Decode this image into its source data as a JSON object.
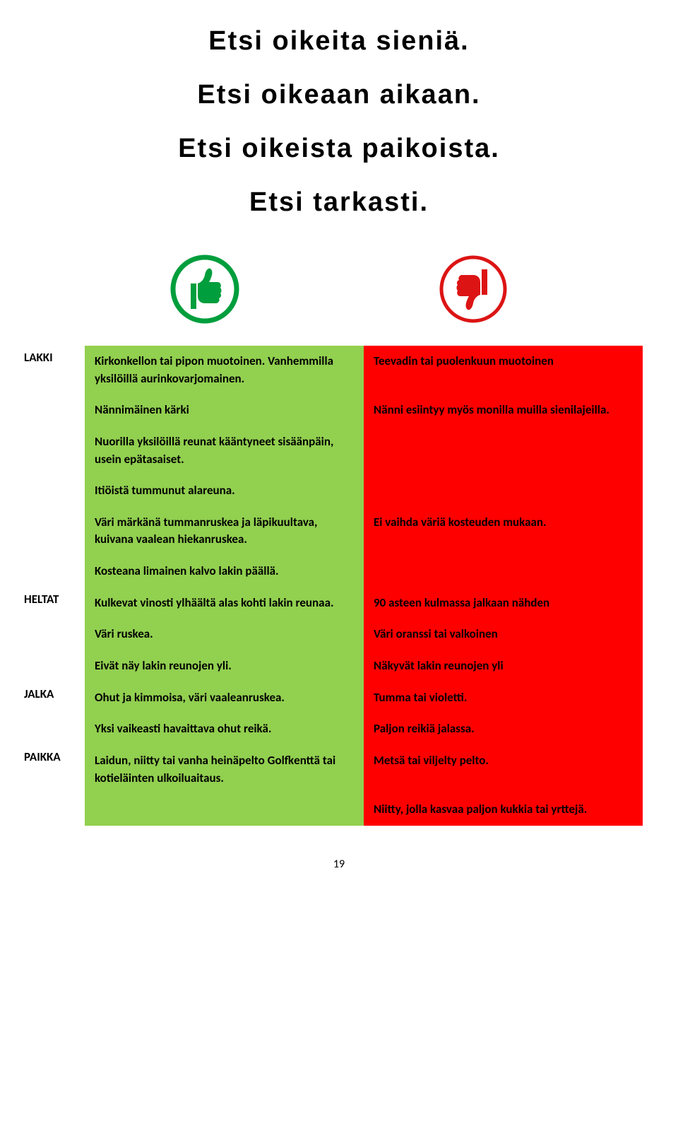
{
  "heading": {
    "line1": "Etsi oikeita sieniä.",
    "line2": "Etsi oikeaan aikaan.",
    "line3": "Etsi oikeista paikoista.",
    "line4": "Etsi tarkasti."
  },
  "colors": {
    "green_bg": "#92d050",
    "red_bg": "#ff0000",
    "thumb_up": "#009e3d",
    "thumb_up_ring": "#009e3d",
    "thumb_down": "#dc1414",
    "thumb_down_ring": "#dc1414",
    "text": "#000000"
  },
  "table": {
    "sections": [
      {
        "label": "LAKKI",
        "rows": [
          {
            "green": "Kirkonkellon tai pipon muotoinen. Vanhemmilla yksilöillä aurinkovarjomainen.",
            "red": "Teevadin tai puolenkuun muotoinen"
          },
          {
            "green": "Nännimäinen kärki",
            "red": "Nänni esiintyy myös monilla muilla sienilajeilla."
          },
          {
            "green": "Nuorilla yksilöillä reunat kääntyneet sisäänpäin, usein epätasaiset.",
            "red": ""
          },
          {
            "green": "Itiöistä tummunut alareuna.",
            "red": ""
          },
          {
            "green": "Väri märkänä tummanruskea ja läpikuultava, kuivana vaalean hiekanruskea.",
            "red": "Ei vaihda väriä kosteuden mukaan."
          },
          {
            "green": "Kosteana limainen kalvo lakin päällä.",
            "red": ""
          }
        ]
      },
      {
        "label": "HELTAT",
        "rows": [
          {
            "green": "Kulkevat vinosti ylhäältä alas kohti lakin reunaa.",
            "red": "90 asteen kulmassa jalkaan nähden"
          },
          {
            "green": "Väri ruskea.",
            "red": "Väri oranssi tai valkoinen"
          },
          {
            "green": "Eivät näy lakin reunojen yli.",
            "red": "Näkyvät lakin reunojen yli"
          }
        ]
      },
      {
        "label": "JALKA",
        "rows": [
          {
            "green": "Ohut ja kimmoisa,  väri vaaleanruskea.",
            "red": "Tumma tai violetti."
          },
          {
            "green": "Yksi vaikeasti havaittava ohut reikä.",
            "red": "Paljon reikiä jalassa."
          }
        ]
      },
      {
        "label": "PAIKKA",
        "rows": [
          {
            "green": "Laidun, niitty tai vanha heinäpelto Golfkenttä tai kotieläinten ulkoiluaitaus.",
            "red": "Metsä tai viljelty pelto."
          },
          {
            "green": "",
            "red": "Niitty, jolla kasvaa paljon kukkia tai yrttejä."
          }
        ]
      }
    ]
  },
  "page_number": "19"
}
